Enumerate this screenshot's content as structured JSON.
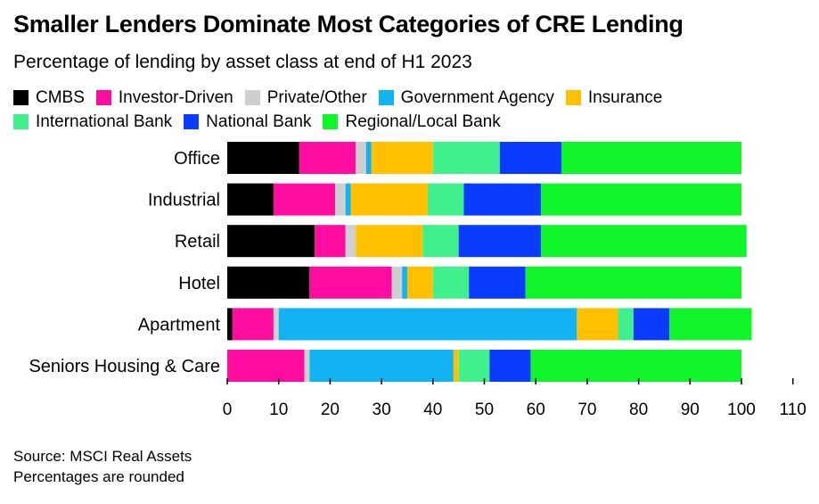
{
  "title": "Smaller Lenders Dominate Most Categories of CRE Lending",
  "subtitle": "Percentage of lending by asset class at end of H1 2023",
  "source": "Source: MSCI Real Assets",
  "note": "Percentages are rounded",
  "chart_data": {
    "type": "bar",
    "orientation": "horizontal",
    "stacked": true,
    "title": "Smaller Lenders Dominate Most Categories of CRE Lending",
    "subtitle": "Percentage of lending by asset class at end of H1 2023",
    "categories": [
      "Office",
      "Industrial",
      "Retail",
      "Hotel",
      "Apartment",
      "Seniors Housing & Care"
    ],
    "xlim": [
      0,
      110
    ],
    "xticks": [
      "0",
      "10",
      "20",
      "30",
      "40",
      "50",
      "60",
      "70",
      "80",
      "90",
      "100",
      "110"
    ],
    "grid": false,
    "legend_position": "top",
    "series": [
      {
        "name": "CMBS",
        "color": "#000000",
        "values": [
          14,
          9,
          17,
          16,
          1,
          0
        ]
      },
      {
        "name": "Investor-Driven",
        "color": "#ff0da0",
        "values": [
          11,
          12,
          6,
          16,
          8,
          15
        ]
      },
      {
        "name": "Private/Other",
        "color": "#cfcfcf",
        "values": [
          2,
          2,
          2,
          2,
          1,
          1
        ]
      },
      {
        "name": "Government Agency",
        "color": "#11b3f2",
        "values": [
          1,
          1,
          0,
          1,
          58,
          28
        ]
      },
      {
        "name": "Insurance",
        "color": "#ffc000",
        "values": [
          12,
          15,
          13,
          5,
          8,
          1
        ]
      },
      {
        "name": "International Bank",
        "color": "#40f08c",
        "values": [
          13,
          7,
          7,
          7,
          3,
          6
        ]
      },
      {
        "name": "National Bank",
        "color": "#0a3cff",
        "values": [
          12,
          15,
          16,
          11,
          7,
          8
        ]
      },
      {
        "name": "Regional/Local Bank",
        "color": "#0ff52a",
        "values": [
          35,
          39,
          40,
          42,
          16,
          41
        ]
      }
    ]
  }
}
